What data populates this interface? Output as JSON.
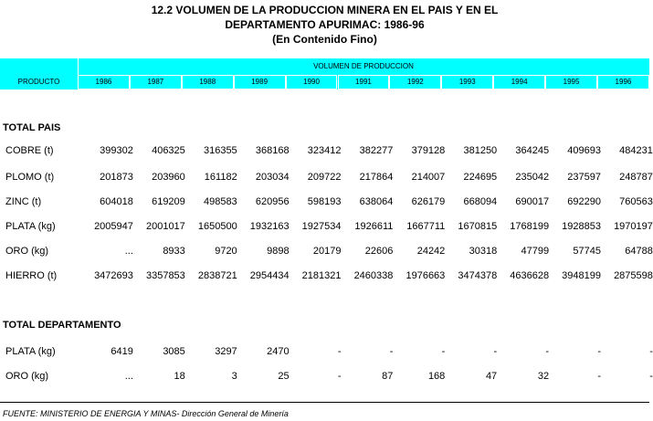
{
  "title": [
    "12.2  VOLUMEN DE LA PRODUCCION MINERA EN EL PAIS Y EN EL",
    "DEPARTAMENTO APURIMAC: 1986-96",
    "(En Contenido Fino)"
  ],
  "header": {
    "product": "PRODUCTO",
    "group": "VOLUMEN DE PRODUCCION",
    "years": [
      "1986",
      "1987",
      "1988",
      "1989",
      "1990",
      "1991",
      "1992",
      "1993",
      "1994",
      "1995",
      "1996"
    ]
  },
  "sections": [
    {
      "title": "TOTAL PAIS",
      "rows": [
        {
          "label": "COBRE (t)",
          "values": [
            399302,
            406325,
            316355,
            368168,
            323412,
            382277,
            379128,
            381250,
            364245,
            409693,
            484231
          ]
        },
        {
          "label": "PLOMO (t)",
          "values": [
            201873,
            203960,
            161182,
            203034,
            209722,
            217864,
            214007,
            224695,
            235042,
            237597,
            248787
          ]
        },
        {
          "label": "ZINC (t)",
          "values": [
            604018,
            619209,
            498583,
            620956,
            598193,
            638064,
            626179,
            668094,
            690017,
            692290,
            760563
          ]
        },
        {
          "label": "PLATA (kg)",
          "values": [
            2005947,
            2001017,
            1650500,
            1932163,
            1927534,
            1926611,
            1667711,
            1670815,
            1768199,
            1928853,
            1970197
          ]
        },
        {
          "label": "ORO (kg)",
          "values": [
            "...",
            8933,
            9720,
            9898,
            20179,
            22606,
            24242,
            30318,
            47799,
            57745,
            64788
          ]
        },
        {
          "label": "HIERRO (t)",
          "values": [
            3472693,
            3357853,
            2838721,
            2954434,
            2181321,
            2460338,
            1976663,
            3474378,
            4636628,
            3948199,
            2875598
          ]
        }
      ]
    },
    {
      "title": "TOTAL DEPARTAMENTO",
      "rows": [
        {
          "label": "PLATA (kg)",
          "values": [
            6419,
            3085,
            3297,
            2470,
            "-",
            "-",
            "-",
            "-",
            "-",
            "-",
            "-"
          ]
        },
        {
          "label": "ORO (kg)",
          "values": [
            "...",
            18,
            3,
            25,
            "-",
            87,
            168,
            47,
            32,
            "-",
            "-"
          ]
        }
      ]
    }
  ],
  "footer": "FUENTE: MINISTERIO DE ENERGIA Y MINAS- Dirección General de Minería"
}
